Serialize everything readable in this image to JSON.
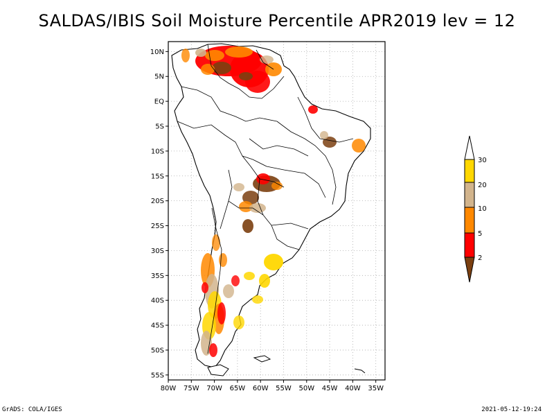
{
  "title": "SALDAS/IBIS Soil Moisture Percentile APR2019 lev = 12",
  "map": {
    "lon_range": [
      -80,
      -33
    ],
    "lat_range": [
      -56,
      12
    ],
    "lon_ticks": [
      "80W",
      "75W",
      "70W",
      "65W",
      "60W",
      "55W",
      "50W",
      "45W",
      "40W",
      "35W"
    ],
    "lat_ticks": [
      "10N",
      "5N",
      "EQ",
      "5S",
      "10S",
      "15S",
      "20S",
      "25S",
      "30S",
      "35S",
      "40S",
      "45S",
      "50S",
      "55S"
    ],
    "grid": true
  },
  "legend": {
    "labels": [
      "2",
      "5",
      "10",
      "20",
      "30"
    ],
    "colors": {
      "lt2": "#7b3f10",
      "2to5": "#ff0000",
      "5to10": "#ff8800",
      "10to20": "#d2b48c",
      "20to30": "#ffd700",
      "gt30": "#ffffff"
    }
  },
  "footer": {
    "left": "GrADS: COLA/IGES",
    "right": "2021-05-12-19:24"
  }
}
